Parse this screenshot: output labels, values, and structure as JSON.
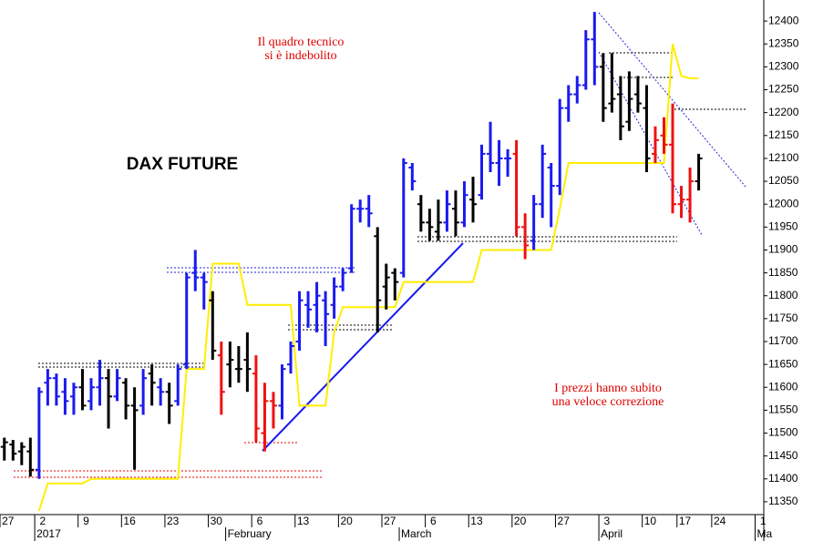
{
  "chart_data": {
    "type": "ohlc",
    "title": "DAX FUTURE",
    "annotations": [
      "Il quadro tecnico",
      "si è indebolito",
      "I prezzi hanno subito",
      "una veloce correzione"
    ],
    "categories": [
      "27",
      null,
      null,
      null,
      "2",
      null,
      null,
      null,
      null,
      "9",
      null,
      null,
      null,
      null,
      "16",
      null,
      null,
      null,
      null,
      "23",
      null,
      null,
      null,
      null,
      "30",
      null,
      null,
      null,
      null,
      "6",
      null,
      null,
      null,
      null,
      "13",
      null,
      null,
      null,
      null,
      "20",
      null,
      null,
      null,
      null,
      "27",
      null,
      null,
      null,
      null,
      "6",
      null,
      null,
      null,
      null,
      "13",
      null,
      null,
      null,
      null,
      "20",
      null,
      null,
      null,
      null,
      "27",
      null,
      null,
      null,
      null,
      "3",
      null,
      null,
      null,
      null,
      "10",
      null,
      null,
      null,
      "17",
      null,
      null,
      null,
      "24",
      null,
      null,
      null,
      null,
      "1"
    ],
    "month_categories": [
      null,
      null,
      null,
      null,
      "2017",
      null,
      null,
      null,
      null,
      null,
      null,
      null,
      null,
      null,
      null,
      null,
      null,
      null,
      null,
      null,
      null,
      null,
      null,
      null,
      null,
      null,
      "February",
      null,
      null,
      null,
      null,
      null,
      null,
      null,
      null,
      null,
      null,
      null,
      null,
      null,
      null,
      null,
      null,
      null,
      null,
      null,
      "March",
      null,
      null,
      null,
      null,
      null,
      null,
      null,
      null,
      null,
      null,
      null,
      null,
      null,
      null,
      null,
      null,
      null,
      null,
      null,
      null,
      null,
      null,
      "April",
      null,
      null,
      null,
      null,
      null,
      null,
      null,
      null,
      null,
      null,
      null,
      null,
      null,
      null,
      null,
      null,
      null,
      "Ma"
    ],
    "open": [
      11470,
      11475,
      11460,
      11460,
      11420,
      11610,
      11620,
      11590,
      11580,
      11600,
      11570,
      11600,
      11620,
      11580,
      11610,
      11560,
      11560,
      11630,
      11600,
      11590,
      11570,
      11650,
      11850,
      11840,
      11790,
      11670,
      11650,
      11640,
      11660,
      11630,
      11500,
      11570,
      11560,
      11650,
      11700,
      11780,
      11780,
      11790,
      11780,
      11820,
      11860,
      11990,
      11990,
      11930,
      11820,
      11850,
      11850,
      12080,
      12000,
      11960,
      11940,
      11960,
      11990,
      11960,
      12010,
      12020,
      12110,
      12090,
      12100,
      12110,
      11950,
      11920,
      12000,
      12080,
      12040,
      12210,
      12240,
      12260,
      12360,
      12300,
      12220,
      12240,
      12180,
      12240,
      12210,
      12110,
      12150,
      12130,
      12000,
      12010,
      12050,
      null,
      null,
      null,
      null,
      null,
      null,
      null
    ],
    "high": [
      11490,
      11485,
      11480,
      11490,
      11600,
      11640,
      11630,
      11620,
      11610,
      11640,
      11620,
      11660,
      11640,
      11640,
      11620,
      11600,
      11640,
      11650,
      11620,
      11610,
      11650,
      11850,
      11900,
      11850,
      11810,
      11700,
      11700,
      11690,
      11720,
      11670,
      11610,
      11590,
      11650,
      11700,
      11810,
      11810,
      11830,
      11810,
      11840,
      11860,
      12000,
      12010,
      12020,
      11950,
      11870,
      11860,
      12100,
      12090,
      12020,
      11990,
      12010,
      12030,
      12030,
      12050,
      12060,
      12130,
      12180,
      12140,
      12120,
      12140,
      11980,
      12020,
      12130,
      12090,
      12230,
      12260,
      12280,
      12380,
      12420,
      12330,
      12330,
      12280,
      12290,
      12280,
      12260,
      12170,
      12190,
      12220,
      12040,
      12080,
      12110,
      null,
      null,
      null,
      null,
      null,
      null,
      null
    ],
    "low": [
      11440,
      11440,
      11430,
      11405,
      11400,
      11560,
      11560,
      11540,
      11540,
      11550,
      11550,
      11560,
      11510,
      11570,
      11530,
      11420,
      11540,
      11560,
      11560,
      11520,
      11560,
      11640,
      11810,
      11770,
      11660,
      11540,
      11600,
      11610,
      11590,
      11480,
      11460,
      11510,
      11530,
      11630,
      11680,
      11730,
      11720,
      11690,
      11750,
      11810,
      11850,
      11960,
      11950,
      11720,
      11770,
      11790,
      11840,
      12030,
      11940,
      11920,
      11920,
      11940,
      11930,
      11950,
      11960,
      12010,
      12070,
      12040,
      12060,
      11930,
      11880,
      11900,
      11970,
      11950,
      12020,
      12180,
      12220,
      12250,
      12260,
      12180,
      12200,
      12140,
      12160,
      12200,
      12070,
      12090,
      12110,
      11980,
      11970,
      11960,
      12030,
      null,
      null,
      null,
      null,
      null,
      null,
      null
    ],
    "close": [
      11480,
      11455,
      11470,
      11420,
      11590,
      11620,
      11580,
      11570,
      11600,
      11560,
      11600,
      11620,
      11580,
      11620,
      11560,
      11550,
      11620,
      11610,
      11590,
      11560,
      11640,
      11840,
      11840,
      11830,
      11680,
      11590,
      11660,
      11640,
      11640,
      11510,
      11570,
      11560,
      11640,
      11690,
      11790,
      11770,
      11800,
      11760,
      11820,
      11850,
      11990,
      11990,
      11980,
      11790,
      11840,
      11830,
      12090,
      12050,
      11960,
      11950,
      11960,
      12000,
      11960,
      12020,
      12000,
      12110,
      12090,
      12100,
      12100,
      11950,
      11910,
      12000,
      12110,
      12040,
      12210,
      12240,
      12260,
      12360,
      12300,
      12210,
      12230,
      12170,
      12230,
      12220,
      12100,
      12140,
      12130,
      12000,
      12010,
      12050,
      12100,
      null,
      null,
      null,
      null,
      null,
      null,
      null
    ],
    "bar_colors": [
      "#000000",
      "#000000",
      "#000000",
      "#000000",
      "#1a1aee",
      "#1a1aee",
      "#1a1aee",
      "#1a1aee",
      "#1a1aee",
      "#000000",
      "#1a1aee",
      "#1a1aee",
      "#000000",
      "#1a1aee",
      "#000000",
      "#000000",
      "#1a1aee",
      "#000000",
      "#1a1aee",
      "#000000",
      "#1a1aee",
      "#1a1aee",
      "#1a1aee",
      "#1a1aee",
      "#000000",
      "#ee1111",
      "#000000",
      "#000000",
      "#000000",
      "#ee1111",
      "#ee1111",
      "#ee1111",
      "#1a1aee",
      "#1a1aee",
      "#1a1aee",
      "#1a1aee",
      "#1a1aee",
      "#1a1aee",
      "#1a1aee",
      "#1a1aee",
      "#1a1aee",
      "#1a1aee",
      "#1a1aee",
      "#000000",
      "#000000",
      "#000000",
      "#1a1aee",
      "#1a1aee",
      "#000000",
      "#000000",
      "#000000",
      "#1a1aee",
      "#000000",
      "#1a1aee",
      "#000000",
      "#1a1aee",
      "#1a1aee",
      "#1a1aee",
      "#1a1aee",
      "#ee1111",
      "#ee1111",
      "#1a1aee",
      "#1a1aee",
      "#1a1aee",
      "#1a1aee",
      "#1a1aee",
      "#1a1aee",
      "#1a1aee",
      "#1a1aee",
      "#000000",
      "#000000",
      "#000000",
      "#000000",
      "#000000",
      "#000000",
      "#ee1111",
      "#ee1111",
      "#ee1111",
      "#ee1111",
      "#ee1111",
      "#000000",
      null,
      null,
      null,
      null,
      null,
      null,
      null
    ],
    "line": {
      "color": "#ffee00",
      "values": [
        null,
        null,
        null,
        null,
        11330,
        11390,
        11390,
        11390,
        11390,
        11390,
        11400,
        11400,
        11400,
        11400,
        11400,
        11400,
        11400,
        11400,
        11400,
        11400,
        11400,
        11640,
        11640,
        11640,
        11870,
        11870,
        11870,
        11870,
        11780,
        11780,
        11780,
        11780,
        11780,
        11780,
        11560,
        11560,
        11560,
        11560,
        11720,
        11775,
        11775,
        11775,
        11775,
        11775,
        11775,
        11775,
        11830,
        11830,
        11830,
        11830,
        11830,
        11830,
        11830,
        11830,
        11830,
        11900,
        11900,
        11900,
        11900,
        11900,
        11900,
        11900,
        11900,
        11900,
        11990,
        12090,
        12090,
        12090,
        12090,
        12090,
        12090,
        12090,
        12090,
        12090,
        12090,
        12090,
        12090,
        12350,
        12280,
        12275,
        12275,
        null,
        null,
        null,
        null,
        null,
        null,
        null
      ]
    },
    "ylim": [
      11322,
      12446
    ],
    "yticks": [
      11350,
      11400,
      11450,
      11500,
      11550,
      11600,
      11650,
      11700,
      11750,
      11800,
      11850,
      11900,
      11950,
      12000,
      12050,
      12100,
      12150,
      12200,
      12250,
      12300,
      12350,
      12400
    ]
  }
}
